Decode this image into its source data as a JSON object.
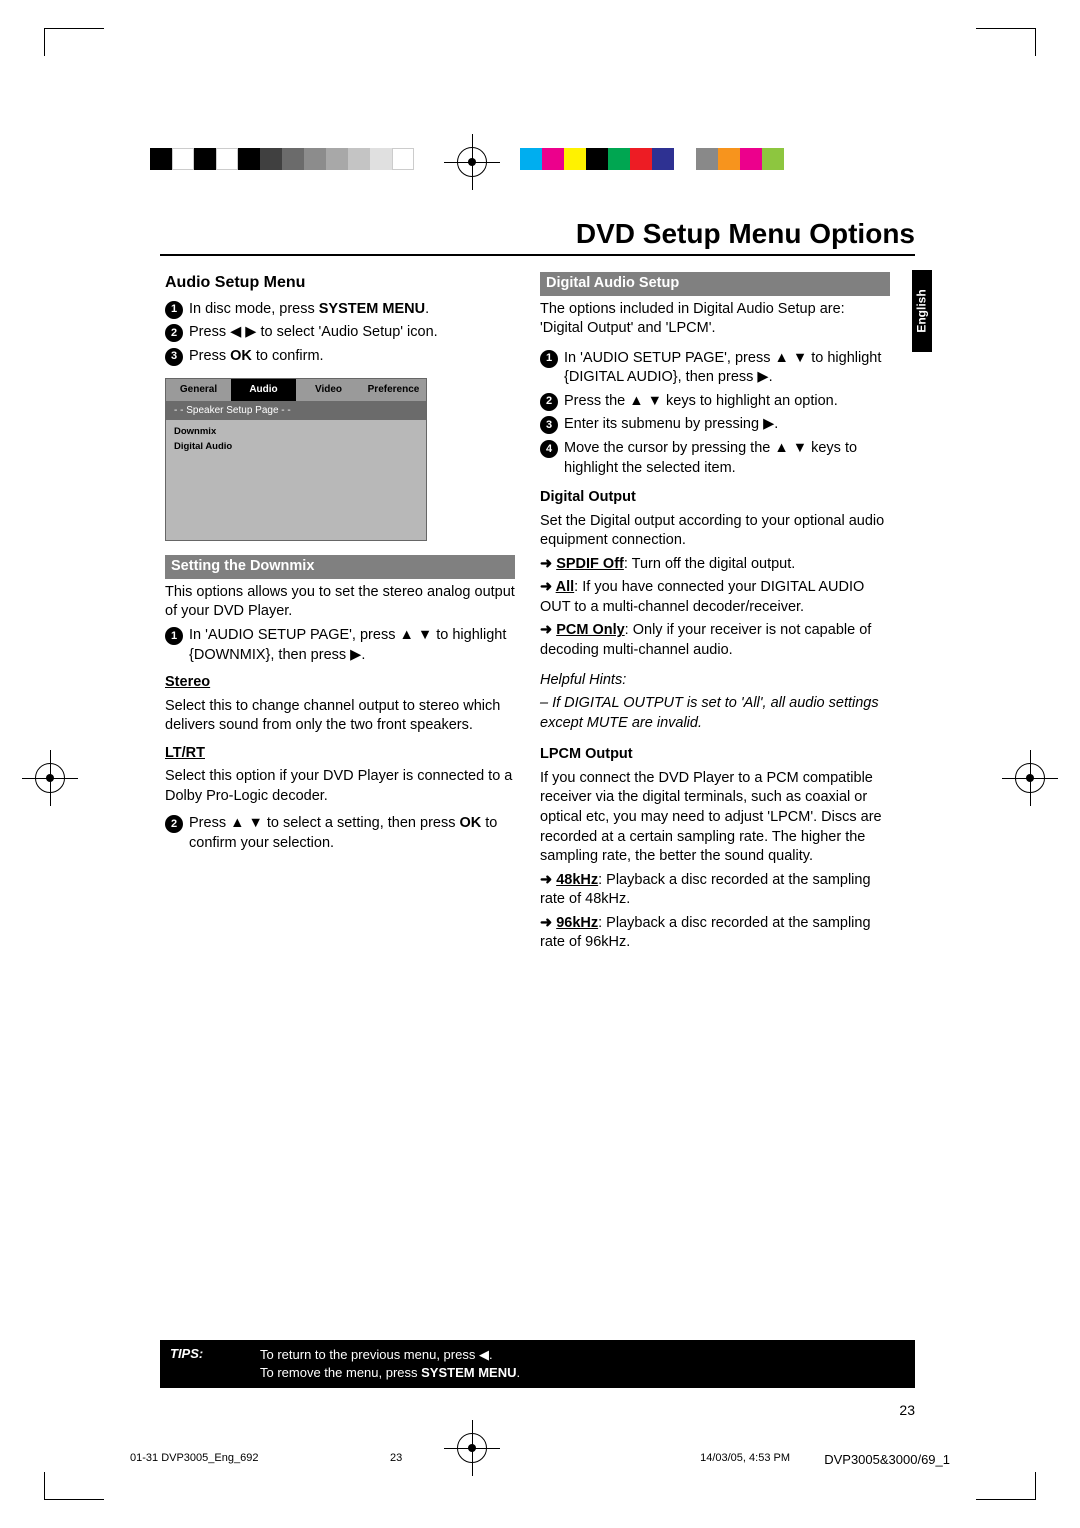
{
  "page_title": "DVD Setup Menu Options",
  "language_tab": "English",
  "page_number": "23",
  "colorbar_left": [
    "#000000",
    "#ffffff",
    "#000000",
    "#ffffff",
    "#000000",
    "#404040",
    "#6b6b6b",
    "#8c8c8c",
    "#a8a8a8",
    "#c4c4c4",
    "#e0e0e0",
    "#ffffff"
  ],
  "colorbar_right": [
    "#00aeef",
    "#ec008c",
    "#fff200",
    "#000000",
    "#00a651",
    "#ed1c24",
    "#2e3192",
    "#ffffff",
    "#898989",
    "#f7941d",
    "#ec008c",
    "#8dc63f"
  ],
  "left": {
    "heading": "Audio Setup Menu",
    "steps1": [
      "In disc mode, press <b>SYSTEM MENU</b>.",
      "Press ◀ ▶ to select 'Audio Setup' icon.",
      "Press <b>OK</b> to confirm."
    ],
    "menu": {
      "tabs": [
        "General",
        "Audio",
        "Video",
        "Preference"
      ],
      "header": "- -   Speaker Setup Page   - -",
      "items": [
        "Downmix",
        "Digital Audio"
      ]
    },
    "grey1": "Setting the Downmix",
    "grey1_text": "This options allows you to set the stereo analog output of your DVD Player.",
    "step_downmix": "In 'AUDIO SETUP PAGE', press ▲ ▼ to highlight {DOWNMIX}, then press ▶.",
    "stereo_h": "Stereo",
    "stereo_t": "Select this to change channel output to stereo which delivers sound from only the two front speakers.",
    "ltrt_h": "LT/RT",
    "ltrt_t": "Select this option if your DVD Player is connected to a Dolby Pro-Logic decoder.",
    "step2": "Press ▲ ▼ to select a setting, then press <b>OK</b> to confirm your selection."
  },
  "right": {
    "grey1": "Digital Audio Setup",
    "intro": "The options included in Digital Audio Setup are: 'Digital Output' and 'LPCM'.",
    "steps": [
      "In 'AUDIO SETUP PAGE', press ▲ ▼ to highlight {DIGITAL AUDIO}, then press ▶.",
      "Press the ▲ ▼ keys to highlight an option.",
      "Enter its submenu by pressing ▶.",
      "Move the cursor by pressing the ▲ ▼ keys to highlight the selected item."
    ],
    "do_h": "Digital Output",
    "do_t": "Set the Digital output according to your optional audio equipment connection.",
    "do_spdif_l": "SPDIF Off",
    "do_spdif_t": ": Turn off the digital output.",
    "do_all_l": "All",
    "do_all_t": ": If you have connected your DIGITAL AUDIO OUT to a multi-channel decoder/receiver.",
    "do_pcm_l": "PCM Only",
    "do_pcm_t": ": Only if your receiver is not capable of decoding multi-channel audio.",
    "hint_h": "Helpful Hints:",
    "hint_t": "–   If DIGITAL OUTPUT is set to 'All', all audio settings except MUTE are invalid.",
    "lpcm_h": "LPCM Output",
    "lpcm_t": "If you connect the DVD Player to a PCM compatible receiver via the digital terminals, such as coaxial or optical etc, you may need to adjust 'LPCM'. Discs are recorded at a certain sampling rate. The higher the sampling rate, the better the sound quality.",
    "lpcm_48_l": "48kHz",
    "lpcm_48_t": ": Playback a disc recorded at the sampling rate of 48kHz.",
    "lpcm_96_l": "96kHz",
    "lpcm_96_t": ": Playback a disc recorded at the sampling rate of 96kHz."
  },
  "tips": {
    "label": "TIPS:",
    "line1": "To return to the previous menu, press ◀.",
    "line2": "To remove the menu, press ",
    "line2_bold": "SYSTEM MENU"
  },
  "footer": {
    "left": "01-31 DVP3005_Eng_692",
    "mid": "23",
    "date": "14/03/05, 4:53 PM",
    "model": "DVP3005&3000/69_1"
  }
}
